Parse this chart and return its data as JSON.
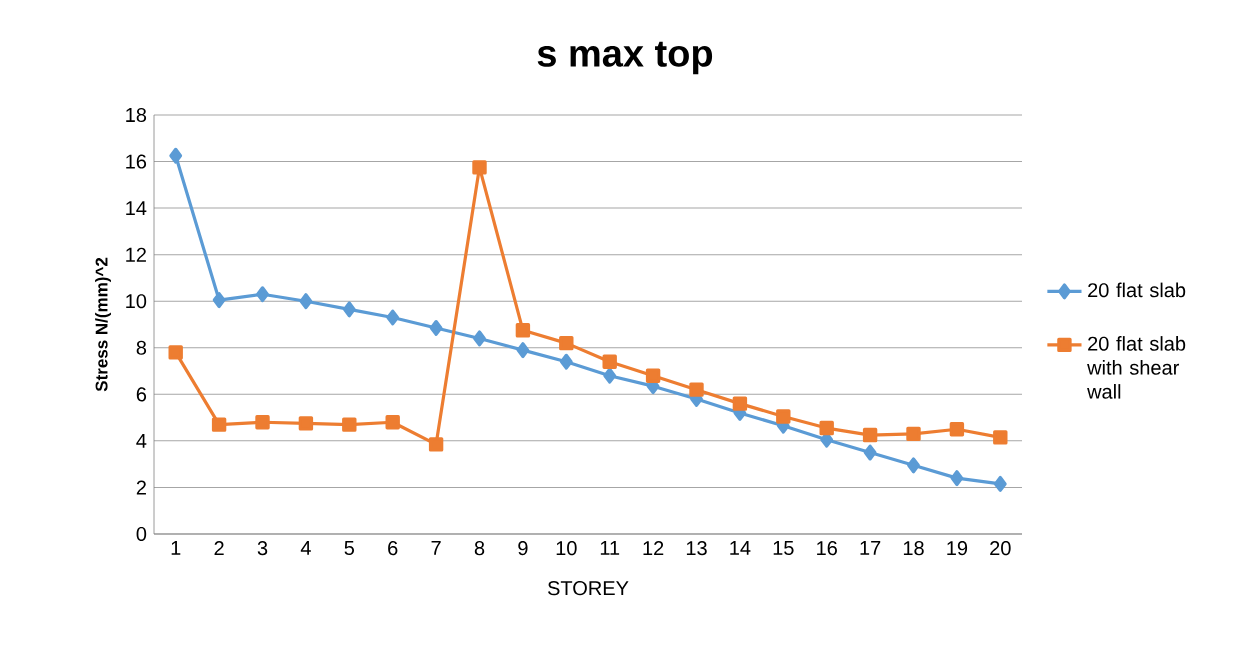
{
  "chart_data": {
    "type": "line",
    "title": "s max top",
    "xlabel": "STOREY",
    "ylabel": "Stress N/(mm)^2",
    "categories": [
      "1",
      "2",
      "3",
      "4",
      "5",
      "6",
      "7",
      "8",
      "9",
      "10",
      "11",
      "12",
      "13",
      "14",
      "15",
      "16",
      "17",
      "18",
      "19",
      "20"
    ],
    "series": [
      {
        "name": "20 flat slab",
        "color": "#5b9bd5",
        "marker": "diamond",
        "values": [
          16.25,
          10.05,
          10.3,
          10.0,
          9.65,
          9.3,
          8.85,
          8.4,
          7.9,
          7.4,
          6.8,
          6.35,
          5.8,
          5.2,
          4.65,
          4.05,
          3.5,
          2.95,
          2.4,
          2.15
        ]
      },
      {
        "name": "20 flat slab with shear wall",
        "color": "#ed7d31",
        "marker": "square",
        "values": [
          7.8,
          4.7,
          4.8,
          4.75,
          4.7,
          4.8,
          3.85,
          15.75,
          8.75,
          8.2,
          7.4,
          6.8,
          6.2,
          5.6,
          5.05,
          4.55,
          4.25,
          4.3,
          4.5,
          4.15
        ]
      }
    ],
    "ylim": [
      0,
      18
    ],
    "yticks": [
      0,
      2,
      4,
      6,
      8,
      10,
      12,
      14,
      16,
      18
    ],
    "grid": "y",
    "legend": "right",
    "line_style": "solid"
  }
}
